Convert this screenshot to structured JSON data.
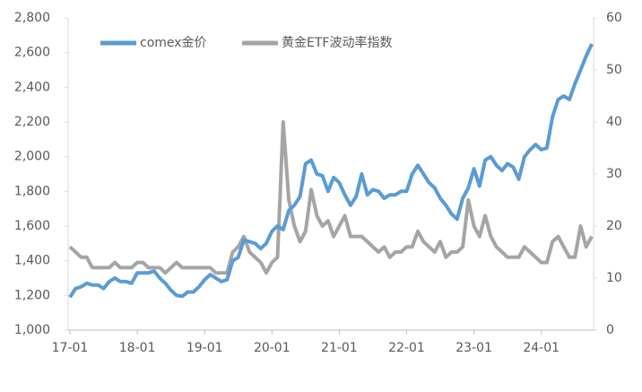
{
  "chart_data": {
    "type": "line",
    "categories": [
      "17-01",
      null,
      null,
      null,
      null,
      null,
      null,
      null,
      null,
      null,
      null,
      null,
      "18-01",
      null,
      null,
      null,
      null,
      null,
      null,
      null,
      null,
      null,
      null,
      null,
      "19-01",
      null,
      null,
      null,
      null,
      null,
      null,
      null,
      null,
      null,
      null,
      null,
      "20-01",
      null,
      null,
      null,
      null,
      null,
      null,
      null,
      null,
      null,
      null,
      null,
      "21-01",
      null,
      null,
      null,
      null,
      null,
      null,
      null,
      null,
      null,
      null,
      null,
      "22-01",
      null,
      null,
      null,
      null,
      null,
      null,
      null,
      null,
      null,
      null,
      null,
      "23-01",
      null,
      null,
      null,
      null,
      null,
      null,
      null,
      null,
      null,
      null,
      null,
      "24-01",
      null,
      null,
      null,
      null,
      null,
      null,
      null,
      null,
      null
    ],
    "series": [
      {
        "name": "comex金价",
        "color": "#5b9bd5",
        "values": [
          1190,
          1240,
          1250,
          1270,
          1260,
          1260,
          1240,
          1280,
          1300,
          1280,
          1280,
          1270,
          1330,
          1330,
          1330,
          1340,
          1300,
          1270,
          1230,
          1200,
          1195,
          1220,
          1220,
          1250,
          1290,
          1320,
          1300,
          1280,
          1290,
          1400,
          1420,
          1520,
          1510,
          1500,
          1470,
          1500,
          1570,
          1600,
          1580,
          1690,
          1720,
          1770,
          1960,
          1980,
          1900,
          1890,
          1800,
          1880,
          1850,
          1780,
          1720,
          1770,
          1900,
          1780,
          1810,
          1800,
          1760,
          1780,
          1780,
          1800,
          1800,
          1900,
          1950,
          1900,
          1850,
          1820,
          1760,
          1720,
          1670,
          1640,
          1760,
          1820,
          1930,
          1830,
          1980,
          2000,
          1950,
          1920,
          1960,
          1940,
          1870,
          2000,
          2040,
          2070,
          2040,
          2050,
          2230,
          2330,
          2350,
          2330,
          2420,
          2500,
          2580,
          2650
        ]
      },
      {
        "name": "黄金ETF波动率指数",
        "color": "#a5a5a5",
        "axis": "y2",
        "values": [
          16,
          15,
          14,
          14,
          12,
          12,
          12,
          12,
          13,
          12,
          12,
          12,
          13,
          13,
          12,
          12,
          12,
          11,
          12,
          13,
          12,
          12,
          12,
          12,
          12,
          12,
          11,
          11,
          11,
          15,
          16,
          18,
          15,
          14,
          13,
          11,
          13,
          14,
          40,
          25,
          20,
          17,
          19,
          27,
          22,
          20,
          21,
          18,
          20,
          22,
          18,
          18,
          18,
          17,
          16,
          15,
          16,
          14,
          15,
          15,
          16,
          16,
          19,
          17,
          16,
          15,
          17,
          14,
          15,
          15,
          16,
          25,
          20,
          18,
          22,
          18,
          16,
          15,
          14,
          14,
          14,
          16,
          15,
          14,
          13,
          13,
          17,
          18,
          16,
          14,
          14,
          20,
          16,
          18
        ]
      }
    ],
    "ylim": [
      1000,
      2800
    ],
    "yticks": [
      {
        "value": 1000,
        "label": "1,000"
      },
      {
        "value": 1200,
        "label": "1,200"
      },
      {
        "value": 1400,
        "label": "1,400"
      },
      {
        "value": 1600,
        "label": "1,600"
      },
      {
        "value": 1800,
        "label": "1,800"
      },
      {
        "value": 2000,
        "label": "2,000"
      },
      {
        "value": 2200,
        "label": "2,200"
      },
      {
        "value": 2400,
        "label": "2,400"
      },
      {
        "value": 2600,
        "label": "2,600"
      },
      {
        "value": 2800,
        "label": "2,800"
      }
    ],
    "y2lim": [
      0,
      60
    ],
    "y2ticks": [
      0,
      10,
      20,
      30,
      40,
      50,
      60
    ],
    "legend": "top"
  }
}
